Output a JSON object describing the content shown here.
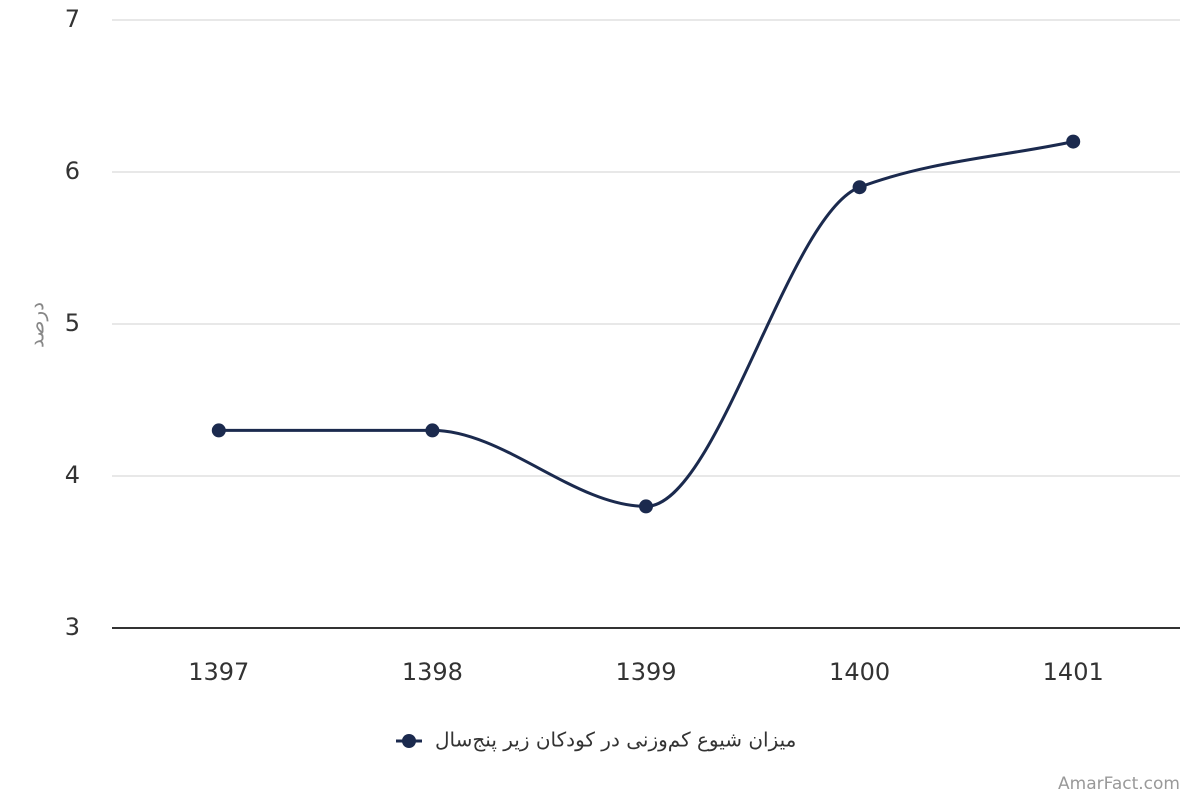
{
  "chart_data": {
    "type": "line",
    "y_label": "درصد",
    "categories": [
      "1397",
      "1398",
      "1399",
      "1400",
      "1401"
    ],
    "series": [
      {
        "name": "میزان شیوع کم‌وزنی در کودکان زیر پنج‌سال",
        "color": "#1b2a4e",
        "values": [
          4.3,
          4.3,
          3.8,
          5.9,
          6.2
        ]
      }
    ],
    "ylim": [
      3,
      7
    ],
    "yticks": [
      3,
      4,
      5,
      6,
      7
    ],
    "grid": true,
    "smooth": true,
    "legend": "bottom",
    "credit": "AmarFact.com"
  }
}
